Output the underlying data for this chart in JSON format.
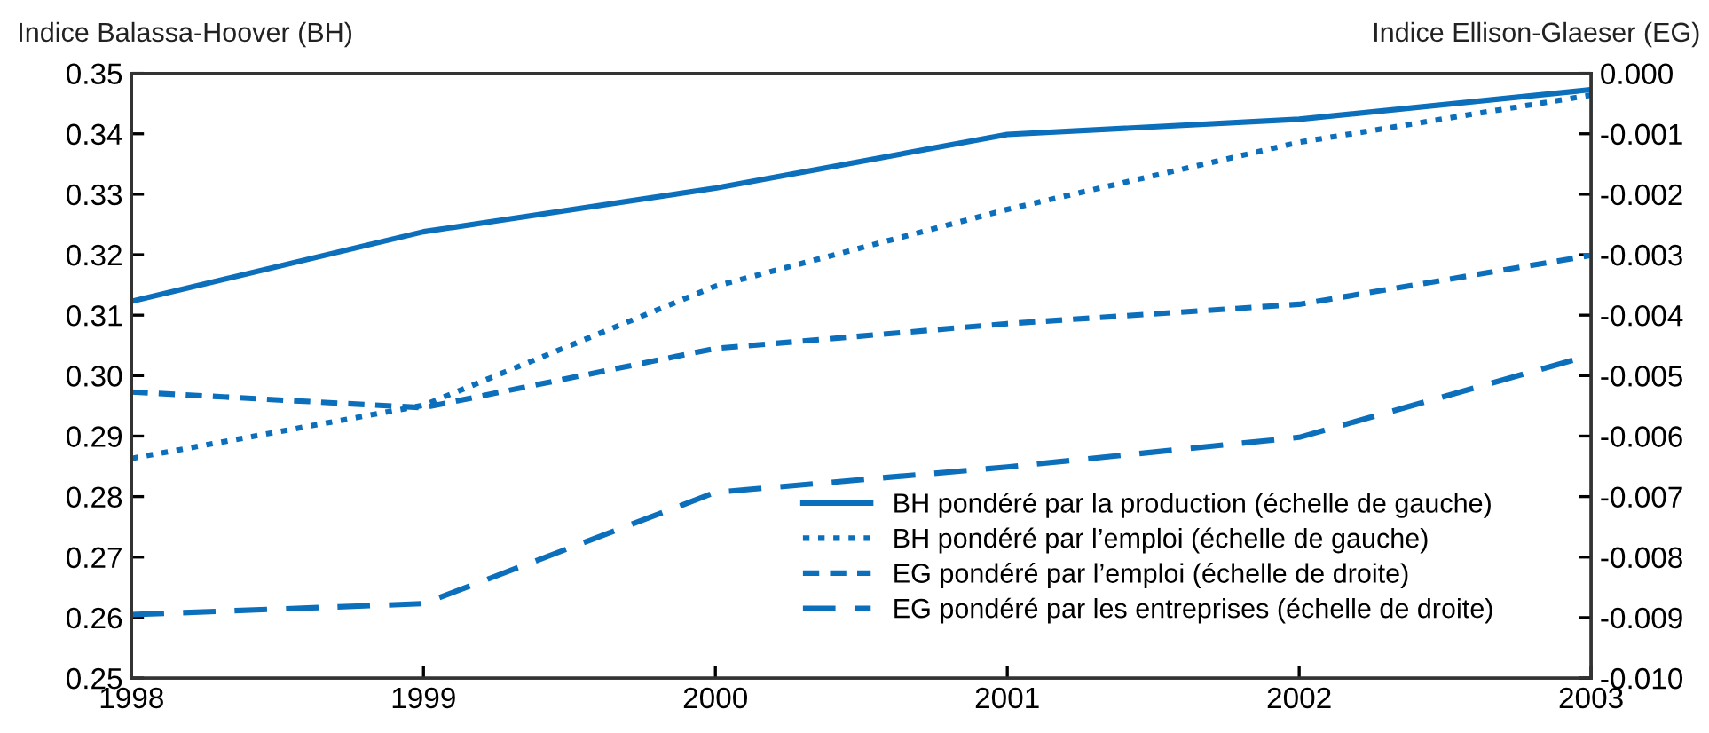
{
  "chart_data": {
    "type": "line",
    "ylabel": "Indice Balassa-Hoover (BH)",
    "y2label": "Indice Ellison-Glaeser (EG)",
    "x": [
      1998,
      1999,
      2000,
      2001,
      2002,
      2003
    ],
    "xlim": [
      1998,
      2003
    ],
    "xticks": [
      1998,
      1999,
      2000,
      2001,
      2002,
      2003
    ],
    "ylim": [
      0.25,
      0.35
    ],
    "yticks": [
      0.25,
      0.26,
      0.27,
      0.28,
      0.29,
      {
        "value": 0.3,
        "label": "0.30"
      },
      0.31,
      0.32,
      0.33,
      0.34,
      0.35
    ],
    "y2lim": [
      -0.01,
      0.0
    ],
    "y2ticks": [
      {
        "value": -0.01,
        "label": "-0.010"
      },
      {
        "value": -0.009,
        "label": "-0.009"
      },
      {
        "value": -0.008,
        "label": "-0.008"
      },
      {
        "value": -0.007,
        "label": "-0.007"
      },
      {
        "value": -0.006,
        "label": "-0.006"
      },
      {
        "value": -0.005,
        "label": "-0.005"
      },
      {
        "value": -0.004,
        "label": "-0.004"
      },
      {
        "value": -0.003,
        "label": "-0.003"
      },
      {
        "value": -0.002,
        "label": "-0.002"
      },
      {
        "value": -0.001,
        "label": "-0.001"
      },
      {
        "value": 0.0,
        "label": "0.000"
      }
    ],
    "series": [
      {
        "name": "BH pondéré par la production (échelle de gauche)",
        "color": "#0b6fbc",
        "line_style": "solid",
        "values": [
          0.3123,
          0.3238,
          0.331,
          0.3399,
          0.3424,
          0.3473
        ]
      },
      {
        "name": "BH pondéré par l’emploi (échelle de gauche)",
        "color": "#0b6fbc",
        "line_style": "dotted",
        "values": [
          0.2863,
          0.2951,
          0.3148,
          0.3275,
          0.3386,
          0.3464
        ]
      },
      {
        "name": "EG pondéré par l’emploi (échelle de droite)",
        "color": "#0b6fbc",
        "line_style": "dashed",
        "axis": "y2",
        "values": [
          -0.00527,
          -0.00553,
          -0.00455,
          -0.00414,
          -0.00382,
          -0.00301
        ]
      },
      {
        "name": "EG pondéré par les entreprises (échelle de droite)",
        "color": "#0b6fbc",
        "line_style": "dashed",
        "axis": "y2",
        "values": [
          -0.00895,
          -0.00877,
          -0.00693,
          -0.00651,
          -0.00602,
          -0.00466
        ]
      }
    ],
    "legend": "bottom right",
    "grid": false,
    "marker": "none"
  }
}
